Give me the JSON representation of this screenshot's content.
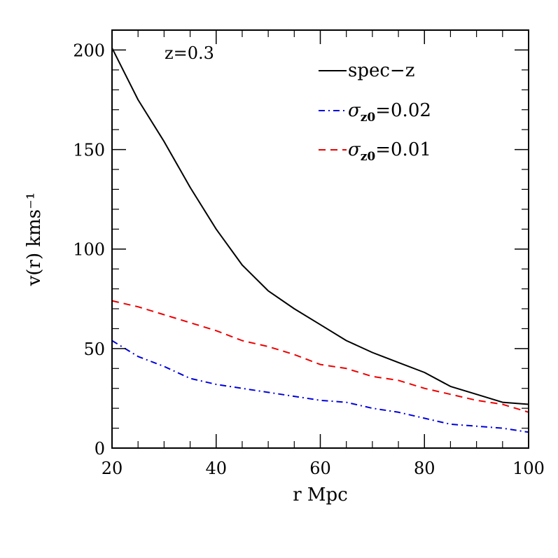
{
  "chart_data": {
    "type": "line",
    "xlabel": "r Mpc",
    "ylabel": "v(r) kms⁻¹",
    "xlim": [
      20,
      100
    ],
    "ylim": [
      0,
      210
    ],
    "xticks": [
      20,
      40,
      60,
      80,
      100
    ],
    "yticks": [
      0,
      50,
      100,
      150,
      200
    ],
    "annotation": "z=0.3",
    "legend_position": "top-right",
    "series": [
      {
        "name": "spec-z",
        "legend_base": "spec−z",
        "legend_sub": "",
        "legend_suffix": "",
        "color": "#000000",
        "dash": "solid",
        "x": [
          20,
          25,
          30,
          35,
          40,
          45,
          50,
          55,
          60,
          65,
          70,
          75,
          80,
          85,
          90,
          95,
          100
        ],
        "y": [
          201,
          175,
          154,
          131,
          110,
          92,
          79,
          70,
          62,
          54,
          48,
          43,
          38,
          31,
          27,
          23,
          22
        ]
      },
      {
        "name": "σz0=0.02",
        "legend_base": "σ",
        "legend_sub": "z0",
        "legend_suffix": "=0.02",
        "color": "#0000dd",
        "dash": "dashdot",
        "x": [
          20,
          25,
          30,
          35,
          40,
          45,
          50,
          55,
          60,
          65,
          70,
          75,
          80,
          85,
          90,
          95,
          100
        ],
        "y": [
          54,
          46,
          41,
          35,
          32,
          30,
          28,
          26,
          24,
          23,
          20,
          18,
          15,
          12,
          11,
          10,
          8
        ]
      },
      {
        "name": "σz0=0.01",
        "legend_base": "σ",
        "legend_sub": "z0",
        "legend_suffix": "=0.01",
        "color": "#ee0000",
        "dash": "dashed",
        "x": [
          20,
          25,
          30,
          35,
          40,
          45,
          50,
          55,
          60,
          65,
          70,
          75,
          80,
          85,
          90,
          95,
          100
        ],
        "y": [
          74,
          71,
          67,
          63,
          59,
          54,
          51,
          47,
          42,
          40,
          36,
          34,
          30,
          27,
          24,
          22,
          18
        ]
      }
    ]
  }
}
